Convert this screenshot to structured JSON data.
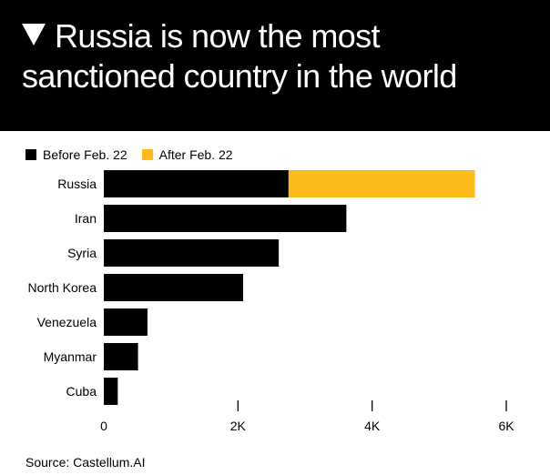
{
  "header": {
    "title": "Russia is now the most sanctioned country in the world"
  },
  "legend": [
    {
      "label": "Before Feb. 22",
      "color": "#000000"
    },
    {
      "label": "After Feb. 22",
      "color": "#FDBB1A"
    }
  ],
  "chart_data": {
    "type": "bar",
    "orientation": "horizontal",
    "stacked": true,
    "categories": [
      "Russia",
      "Iran",
      "Syria",
      "North Korea",
      "Venezuela",
      "Myanmar",
      "Cuba"
    ],
    "series": [
      {
        "name": "Before Feb. 22",
        "values": [
          2754,
          3616,
          2608,
          2077,
          651,
          510,
          208
        ]
      },
      {
        "name": "After Feb. 22",
        "values": [
          2778,
          0,
          0,
          0,
          0,
          0,
          0
        ]
      }
    ],
    "xlim": [
      0,
      6000
    ],
    "xticks": [
      0,
      2000,
      4000,
      6000
    ],
    "xtick_labels": [
      "0",
      "2K",
      "4K",
      "6K"
    ],
    "grid": false
  },
  "source": "Source: Castellum.AI"
}
